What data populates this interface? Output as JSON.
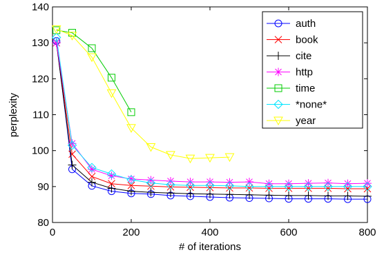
{
  "chart_data": {
    "type": "line",
    "xlabel": "# of iterations",
    "ylabel": "perplexity",
    "xlim": [
      0,
      800
    ],
    "ylim": [
      80,
      140
    ],
    "xticks": [
      "0",
      "200",
      "400",
      "600",
      "800"
    ],
    "yticks": [
      "80",
      "90",
      "100",
      "110",
      "120",
      "130",
      "140"
    ],
    "grid": false,
    "legend_position": "top-right",
    "series": [
      {
        "name": "auth",
        "color": "#0000ff",
        "marker": "circle",
        "x": [
          10,
          50,
          100,
          150,
          200,
          250,
          300,
          350,
          400,
          450,
          500,
          550,
          600,
          650,
          700,
          750,
          800
        ],
        "y": [
          130.5,
          94.8,
          90.2,
          88.7,
          88.1,
          87.9,
          87.5,
          87.3,
          87.1,
          86.9,
          86.8,
          86.7,
          86.6,
          86.6,
          86.6,
          86.5,
          86.5
        ]
      },
      {
        "name": "book",
        "color": "#ff0000",
        "marker": "x",
        "x": [
          10,
          50,
          100,
          150,
          200,
          250,
          300,
          350,
          400,
          450,
          500,
          550,
          600,
          650,
          700,
          750,
          800
        ],
        "y": [
          130.0,
          99.0,
          92.8,
          90.8,
          90.3,
          90.1,
          89.9,
          89.8,
          89.7,
          89.6,
          89.6,
          89.5,
          89.5,
          89.5,
          89.5,
          89.4,
          89.4
        ]
      },
      {
        "name": "cite",
        "color": "#000000",
        "marker": "plus",
        "x": [
          10,
          50,
          100,
          150,
          200,
          250,
          300,
          350,
          400,
          450,
          500,
          550,
          600,
          650,
          700,
          750,
          800
        ],
        "y": [
          130.0,
          96.0,
          91.2,
          89.5,
          88.7,
          88.4,
          88.2,
          88.0,
          87.9,
          87.8,
          87.7,
          87.6,
          87.5,
          87.5,
          87.4,
          87.4,
          87.3
        ]
      },
      {
        "name": "http",
        "color": "#ff00ff",
        "marker": "asterisk",
        "x": [
          10,
          50,
          100,
          150,
          200,
          250,
          300,
          350,
          400,
          450,
          500,
          550,
          600,
          650,
          700,
          750,
          800
        ],
        "y": [
          130.0,
          102.0,
          94.8,
          93.0,
          92.1,
          91.8,
          91.5,
          91.3,
          91.3,
          91.2,
          91.3,
          90.8,
          90.8,
          90.9,
          91.0,
          90.8,
          90.9
        ]
      },
      {
        "name": "time",
        "color": "#00cc00",
        "marker": "square",
        "x": [
          10,
          50,
          100,
          150,
          200
        ],
        "y": [
          133.5,
          132.8,
          128.5,
          120.3,
          110.7
        ]
      },
      {
        "name": "*none*",
        "color": "#00e5ff",
        "marker": "diamond",
        "x": [
          10,
          50,
          100,
          150,
          200,
          250,
          300,
          350,
          400,
          450,
          500,
          550,
          600,
          650,
          700,
          750,
          800
        ],
        "y": [
          131.5,
          101.5,
          95.3,
          93.5,
          91.9,
          91.0,
          90.5,
          90.3,
          90.3,
          90.2,
          90.0,
          90.0,
          90.0,
          90.0,
          90.0,
          90.0,
          90.0
        ]
      },
      {
        "name": "year",
        "color": "#ffff00",
        "marker": "triangle-down",
        "x": [
          10,
          50,
          100,
          150,
          200,
          250,
          300,
          350,
          400,
          450
        ],
        "y": [
          133.8,
          132.0,
          126.0,
          116.0,
          106.3,
          101.0,
          98.8,
          97.8,
          98.0,
          98.2
        ]
      }
    ]
  }
}
